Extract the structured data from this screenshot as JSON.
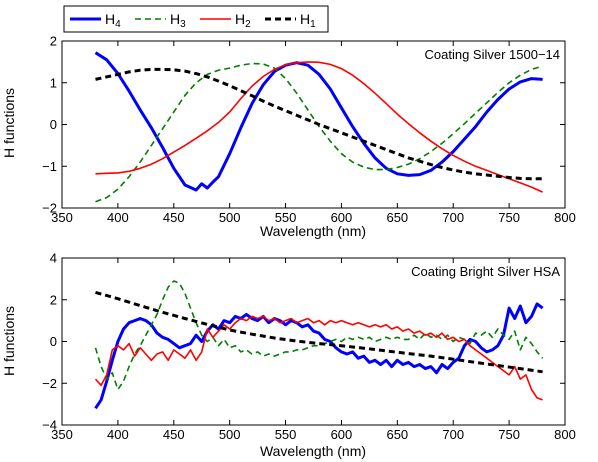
{
  "legend": [
    {
      "base": "H",
      "sub": "4",
      "color": "#0000ff",
      "dash": "",
      "width": 3
    },
    {
      "base": "H",
      "sub": "3",
      "color": "#007f00",
      "dash": "6,4",
      "width": 1.6
    },
    {
      "base": "H",
      "sub": "2",
      "color": "#ff0000",
      "dash": "",
      "width": 1.6
    },
    {
      "base": "H",
      "sub": "1",
      "color": "#000000",
      "dash": "6,4",
      "width": 3
    }
  ],
  "chart_data": [
    {
      "type": "line",
      "annotation": "Coating Silver 1500−14",
      "xlabel": "Wavelength (nm)",
      "ylabel": "H functions",
      "xlim": [
        350,
        800
      ],
      "ylim": [
        -2,
        2
      ],
      "xticks": [
        350,
        400,
        450,
        500,
        550,
        600,
        650,
        700,
        750,
        800
      ],
      "yticks": [
        -2,
        -1,
        0,
        1,
        2
      ],
      "grid": false,
      "series": [
        {
          "name": "H4",
          "x": [
            380,
            390,
            400,
            410,
            420,
            430,
            440,
            450,
            460,
            470,
            475,
            480,
            485,
            490,
            500,
            510,
            520,
            530,
            540,
            550,
            560,
            570,
            580,
            590,
            600,
            610,
            620,
            630,
            640,
            650,
            660,
            670,
            680,
            690,
            700,
            710,
            720,
            730,
            740,
            750,
            760,
            770,
            780
          ],
          "y": [
            1.72,
            1.55,
            1.22,
            0.8,
            0.35,
            -0.08,
            -0.55,
            -1.05,
            -1.45,
            -1.57,
            -1.42,
            -1.52,
            -1.38,
            -1.25,
            -0.7,
            -0.08,
            0.5,
            0.95,
            1.27,
            1.42,
            1.48,
            1.42,
            1.2,
            0.85,
            0.4,
            -0.05,
            -0.45,
            -0.8,
            -1.05,
            -1.18,
            -1.22,
            -1.2,
            -1.1,
            -0.9,
            -0.65,
            -0.35,
            -0.05,
            0.3,
            0.6,
            0.85,
            1.02,
            1.1,
            1.08
          ]
        },
        {
          "name": "H3",
          "x": [
            380,
            390,
            400,
            410,
            420,
            430,
            440,
            450,
            460,
            470,
            480,
            490,
            500,
            510,
            520,
            530,
            540,
            550,
            560,
            570,
            580,
            590,
            600,
            610,
            620,
            630,
            640,
            650,
            660,
            670,
            680,
            690,
            700,
            710,
            720,
            730,
            740,
            750,
            760,
            770,
            780
          ],
          "y": [
            -1.85,
            -1.75,
            -1.55,
            -1.25,
            -0.9,
            -0.5,
            -0.1,
            0.3,
            0.7,
            1.0,
            1.2,
            1.3,
            1.35,
            1.42,
            1.46,
            1.45,
            1.35,
            1.1,
            0.75,
            0.35,
            -0.05,
            -0.4,
            -0.7,
            -0.9,
            -1.02,
            -1.08,
            -1.08,
            -1.03,
            -0.95,
            -0.82,
            -0.65,
            -0.45,
            -0.22,
            0.02,
            0.27,
            0.52,
            0.77,
            1.0,
            1.18,
            1.32,
            1.4
          ]
        },
        {
          "name": "H2",
          "x": [
            380,
            390,
            400,
            410,
            420,
            430,
            440,
            450,
            460,
            470,
            480,
            490,
            500,
            510,
            520,
            530,
            540,
            550,
            560,
            570,
            580,
            590,
            600,
            610,
            620,
            630,
            640,
            650,
            660,
            670,
            680,
            690,
            700,
            710,
            720,
            730,
            740,
            750,
            760,
            770,
            780
          ],
          "y": [
            -1.18,
            -1.17,
            -1.16,
            -1.12,
            -1.05,
            -0.95,
            -0.82,
            -0.66,
            -0.5,
            -0.33,
            -0.15,
            0.05,
            0.3,
            0.62,
            0.92,
            1.15,
            1.32,
            1.43,
            1.48,
            1.5,
            1.49,
            1.44,
            1.34,
            1.18,
            0.98,
            0.75,
            0.5,
            0.25,
            0.02,
            -0.2,
            -0.4,
            -0.58,
            -0.74,
            -0.88,
            -1.0,
            -1.1,
            -1.2,
            -1.3,
            -1.4,
            -1.5,
            -1.62
          ]
        },
        {
          "name": "H1",
          "x": [
            380,
            390,
            400,
            410,
            420,
            430,
            440,
            450,
            460,
            470,
            480,
            490,
            500,
            510,
            520,
            530,
            540,
            550,
            560,
            570,
            580,
            590,
            600,
            610,
            620,
            630,
            640,
            650,
            660,
            670,
            680,
            690,
            700,
            710,
            720,
            730,
            740,
            750,
            760,
            770,
            780
          ],
          "y": [
            1.08,
            1.14,
            1.2,
            1.26,
            1.3,
            1.32,
            1.32,
            1.31,
            1.28,
            1.22,
            1.14,
            1.04,
            0.93,
            0.81,
            0.69,
            0.56,
            0.44,
            0.33,
            0.22,
            0.11,
            0.0,
            -0.1,
            -0.2,
            -0.3,
            -0.4,
            -0.5,
            -0.6,
            -0.7,
            -0.8,
            -0.88,
            -0.96,
            -1.03,
            -1.09,
            -1.14,
            -1.18,
            -1.21,
            -1.24,
            -1.27,
            -1.29,
            -1.3,
            -1.3
          ]
        }
      ]
    },
    {
      "type": "line",
      "annotation": "Coating Bright Silver HSA",
      "xlabel": "Wavelength (nm)",
      "ylabel": "H functions",
      "xlim": [
        350,
        800
      ],
      "ylim": [
        -4,
        4
      ],
      "xticks": [
        350,
        400,
        450,
        500,
        550,
        600,
        650,
        700,
        750,
        800
      ],
      "yticks": [
        -4,
        -2,
        0,
        2,
        4
      ],
      "grid": false,
      "series": [
        {
          "name": "H4",
          "x": [
            380,
            385,
            390,
            395,
            400,
            405,
            410,
            415,
            420,
            425,
            430,
            435,
            440,
            445,
            450,
            455,
            460,
            465,
            470,
            475,
            480,
            485,
            490,
            495,
            500,
            505,
            510,
            515,
            520,
            525,
            530,
            535,
            540,
            545,
            550,
            555,
            560,
            565,
            570,
            575,
            580,
            585,
            590,
            595,
            600,
            605,
            610,
            615,
            620,
            625,
            630,
            635,
            640,
            645,
            650,
            655,
            660,
            665,
            670,
            675,
            680,
            685,
            690,
            695,
            700,
            705,
            710,
            715,
            720,
            725,
            730,
            735,
            740,
            745,
            750,
            755,
            760,
            765,
            770,
            775,
            780
          ],
          "y": [
            -3.2,
            -2.8,
            -1.9,
            -0.9,
            0.0,
            0.6,
            0.9,
            1.0,
            1.1,
            1.0,
            0.8,
            0.4,
            0.2,
            0.1,
            -0.1,
            -0.3,
            -0.2,
            -0.1,
            0.3,
            0.0,
            0.5,
            0.8,
            0.6,
            1.0,
            0.9,
            1.2,
            1.1,
            1.3,
            1.1,
            1.0,
            1.2,
            0.9,
            1.1,
            1.0,
            0.8,
            1.0,
            0.9,
            0.7,
            0.8,
            0.5,
            0.4,
            0.1,
            0.0,
            -0.3,
            -0.5,
            -0.6,
            -0.5,
            -0.8,
            -0.7,
            -1.0,
            -0.9,
            -1.1,
            -0.9,
            -1.2,
            -0.9,
            -1.1,
            -1.0,
            -1.2,
            -1.1,
            -1.3,
            -1.2,
            -1.5,
            -1.1,
            -1.3,
            -1.0,
            -0.8,
            -0.2,
            0.1,
            0.0,
            -0.3,
            -0.5,
            -0.4,
            -0.2,
            0.3,
            1.6,
            1.1,
            1.7,
            0.9,
            1.2,
            1.8,
            1.6
          ]
        },
        {
          "name": "H3",
          "x": [
            380,
            385,
            390,
            395,
            400,
            405,
            410,
            415,
            420,
            425,
            430,
            435,
            440,
            445,
            450,
            455,
            460,
            465,
            470,
            475,
            480,
            485,
            490,
            495,
            500,
            505,
            510,
            515,
            520,
            525,
            530,
            535,
            540,
            545,
            550,
            555,
            560,
            565,
            570,
            575,
            580,
            585,
            590,
            595,
            600,
            605,
            610,
            615,
            620,
            625,
            630,
            635,
            640,
            645,
            650,
            655,
            660,
            665,
            670,
            675,
            680,
            685,
            690,
            695,
            700,
            705,
            710,
            715,
            720,
            725,
            730,
            735,
            740,
            745,
            750,
            755,
            760,
            765,
            770,
            775,
            780
          ],
          "y": [
            -0.3,
            -1.2,
            -1.8,
            -1.5,
            -2.3,
            -1.9,
            -1.2,
            -0.6,
            -0.2,
            0.3,
            0.8,
            1.3,
            2.0,
            2.6,
            2.9,
            2.8,
            2.3,
            1.6,
            0.9,
            0.3,
            0.0,
            0.2,
            -0.2,
            0.1,
            -0.3,
            -0.2,
            -0.5,
            -0.4,
            -0.6,
            -0.5,
            -0.7,
            -0.6,
            -0.7,
            -0.6,
            -0.5,
            -0.5,
            -0.4,
            -0.4,
            -0.3,
            -0.2,
            -0.2,
            -0.1,
            0.0,
            0.1,
            0.0,
            0.2,
            0.1,
            0.2,
            0.1,
            0.2,
            0.0,
            0.1,
            0.2,
            0.1,
            0.2,
            0.1,
            0.1,
            0.3,
            0.1,
            0.4,
            0.2,
            0.3,
            0.1,
            0.3,
            0.0,
            0.2,
            0.1,
            -0.1,
            0.4,
            0.3,
            0.5,
            0.2,
            0.6,
            0.3,
            0.1,
            0.5,
            -0.4,
            0.2,
            -0.1,
            -0.5,
            -0.8
          ]
        },
        {
          "name": "H2",
          "x": [
            380,
            385,
            390,
            395,
            400,
            405,
            410,
            415,
            420,
            425,
            430,
            435,
            440,
            445,
            450,
            455,
            460,
            465,
            470,
            475,
            480,
            485,
            490,
            495,
            500,
            505,
            510,
            515,
            520,
            525,
            530,
            535,
            540,
            545,
            550,
            555,
            560,
            565,
            570,
            575,
            580,
            585,
            590,
            595,
            600,
            605,
            610,
            615,
            620,
            625,
            630,
            635,
            640,
            645,
            650,
            655,
            660,
            665,
            670,
            675,
            680,
            685,
            690,
            695,
            700,
            705,
            710,
            715,
            720,
            725,
            730,
            735,
            740,
            745,
            750,
            755,
            760,
            765,
            770,
            775,
            780
          ],
          "y": [
            -1.8,
            -2.1,
            -1.6,
            -0.4,
            -0.2,
            -0.4,
            -0.1,
            -0.7,
            -0.3,
            -0.6,
            -0.9,
            -0.6,
            -0.5,
            -0.9,
            -0.4,
            -0.6,
            -0.8,
            -0.4,
            -0.9,
            -0.5,
            0.6,
            0.2,
            0.5,
            0.8,
            0.6,
            0.9,
            1.1,
            1.0,
            1.2,
            1.1,
            1.2,
            1.0,
            1.1,
            0.9,
            1.0,
            1.1,
            0.9,
            1.0,
            1.1,
            0.9,
            1.0,
            0.8,
            1.0,
            0.9,
            1.0,
            0.9,
            0.8,
            0.9,
            0.8,
            0.7,
            0.8,
            0.7,
            0.8,
            0.6,
            0.7,
            0.5,
            0.6,
            0.4,
            0.5,
            0.3,
            0.4,
            0.2,
            0.4,
            0.1,
            0.2,
            0.0,
            0.1,
            -0.2,
            -0.4,
            -0.6,
            -0.8,
            -1.0,
            -1.2,
            -1.4,
            -1.6,
            -1.2,
            -1.8,
            -1.6,
            -2.3,
            -2.7,
            -2.8
          ]
        },
        {
          "name": "H1",
          "x": [
            380,
            400,
            420,
            440,
            460,
            480,
            500,
            520,
            540,
            560,
            580,
            600,
            620,
            640,
            660,
            680,
            700,
            720,
            740,
            760,
            780
          ],
          "y": [
            2.35,
            2.05,
            1.72,
            1.4,
            1.1,
            0.82,
            0.55,
            0.35,
            0.17,
            0.02,
            -0.1,
            -0.2,
            -0.32,
            -0.45,
            -0.58,
            -0.7,
            -0.85,
            -1.0,
            -1.15,
            -1.3,
            -1.45
          ]
        }
      ]
    }
  ]
}
